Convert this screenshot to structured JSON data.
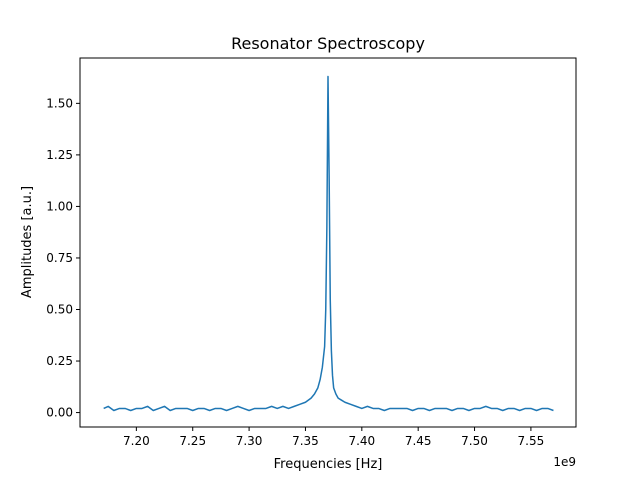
{
  "chart_data": {
    "type": "line",
    "title": "Resonator Spectroscopy",
    "xlabel": "Frequencies [Hz]",
    "ylabel": "Amplitudes [a.u.]",
    "x_offset_label": "1e9",
    "xlim": [
      7.15,
      7.59
    ],
    "ylim": [
      -0.07,
      1.72
    ],
    "x_ticks": [
      7.2,
      7.25,
      7.3,
      7.35,
      7.4,
      7.45,
      7.5,
      7.55
    ],
    "x_tick_labels": [
      "7.20",
      "7.25",
      "7.30",
      "7.35",
      "7.40",
      "7.45",
      "7.50",
      "7.55"
    ],
    "y_ticks": [
      0.0,
      0.25,
      0.5,
      0.75,
      1.0,
      1.25,
      1.5
    ],
    "y_tick_labels": [
      "0.00",
      "0.25",
      "0.50",
      "0.75",
      "1.00",
      "1.25",
      "1.50"
    ],
    "grid": false,
    "legend": "none",
    "series": [
      {
        "color": "#1f77b4",
        "x": [
          7.171,
          7.175,
          7.18,
          7.185,
          7.19,
          7.195,
          7.2,
          7.205,
          7.21,
          7.215,
          7.22,
          7.225,
          7.23,
          7.235,
          7.24,
          7.245,
          7.25,
          7.255,
          7.26,
          7.265,
          7.27,
          7.275,
          7.28,
          7.285,
          7.29,
          7.295,
          7.3,
          7.305,
          7.31,
          7.315,
          7.32,
          7.325,
          7.33,
          7.335,
          7.34,
          7.345,
          7.35,
          7.355,
          7.358,
          7.361,
          7.363,
          7.365,
          7.367,
          7.368,
          7.369,
          7.37,
          7.371,
          7.372,
          7.373,
          7.374,
          7.375,
          7.377,
          7.379,
          7.382,
          7.385,
          7.39,
          7.395,
          7.4,
          7.405,
          7.41,
          7.415,
          7.42,
          7.425,
          7.43,
          7.435,
          7.44,
          7.445,
          7.45,
          7.455,
          7.46,
          7.465,
          7.47,
          7.475,
          7.48,
          7.485,
          7.49,
          7.495,
          7.5,
          7.505,
          7.51,
          7.515,
          7.52,
          7.525,
          7.53,
          7.535,
          7.54,
          7.545,
          7.55,
          7.555,
          7.56,
          7.565,
          7.57
        ],
        "y": [
          0.02,
          0.03,
          0.01,
          0.02,
          0.02,
          0.01,
          0.02,
          0.02,
          0.03,
          0.01,
          0.02,
          0.03,
          0.01,
          0.02,
          0.02,
          0.02,
          0.01,
          0.02,
          0.02,
          0.01,
          0.02,
          0.02,
          0.01,
          0.02,
          0.03,
          0.02,
          0.01,
          0.02,
          0.02,
          0.02,
          0.03,
          0.02,
          0.03,
          0.02,
          0.03,
          0.04,
          0.05,
          0.07,
          0.09,
          0.12,
          0.16,
          0.22,
          0.32,
          0.5,
          0.9,
          1.63,
          1.15,
          0.55,
          0.3,
          0.18,
          0.12,
          0.09,
          0.07,
          0.06,
          0.05,
          0.04,
          0.03,
          0.02,
          0.03,
          0.02,
          0.02,
          0.01,
          0.02,
          0.02,
          0.02,
          0.02,
          0.01,
          0.02,
          0.02,
          0.01,
          0.02,
          0.02,
          0.02,
          0.01,
          0.02,
          0.02,
          0.01,
          0.02,
          0.02,
          0.03,
          0.02,
          0.02,
          0.01,
          0.02,
          0.02,
          0.01,
          0.02,
          0.02,
          0.01,
          0.02,
          0.02,
          0.01
        ]
      }
    ]
  }
}
